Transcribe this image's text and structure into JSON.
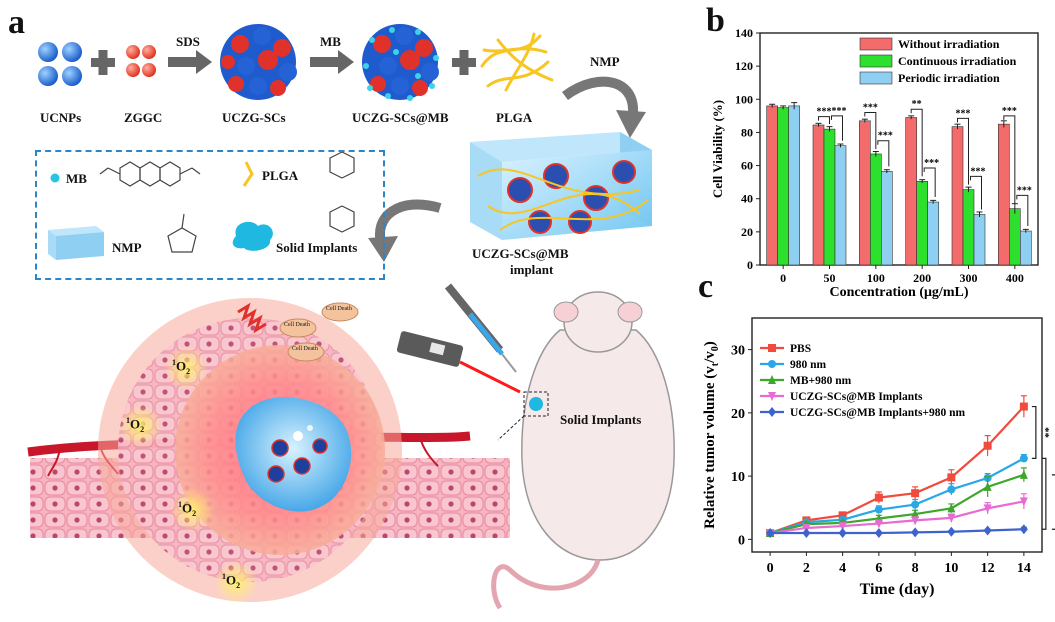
{
  "panel_a": {
    "letter": "a",
    "steps": {
      "ucnps": "UCNPs",
      "zggc": "ZGGC",
      "sds": "SDS",
      "ucsz": "UCZG-SCs",
      "mb_arrow": "MB",
      "ucsz_mb": "UCZG-SCs@MB",
      "plga": "PLGA",
      "nmp": "NMP"
    },
    "legend": {
      "mb": "MB",
      "plga": "PLGA",
      "nmp": "NMP",
      "solid_implants": "Solid Implants"
    },
    "implant_label_1": "UCZG-SCs@MB",
    "implant_label_2": "implant",
    "solid_implants_label": "Solid Implants",
    "cell_death": "Cell Death",
    "singlet_oxygen_sup": "1",
    "singlet_oxygen": "O",
    "singlet_oxygen_sub": "2"
  },
  "colors": {
    "red": "#f36b6b",
    "green": "#2ee02e",
    "blue": "#8fd0f2",
    "pbs": "#f04b3c",
    "nm980": "#29a7e6",
    "mb980": "#3da62b",
    "implants": "#e86bd3",
    "implants980": "#3f62cc"
  },
  "chart_data": [
    {
      "panel": "b",
      "type": "bar",
      "xlabel": "Concentration (μg/mL)",
      "ylabel": "Cell Viability (%)",
      "ylim": [
        0,
        140
      ],
      "yticks": [
        "0",
        "20",
        "40",
        "60",
        "80",
        "100",
        "120",
        "140"
      ],
      "categories": [
        "0",
        "50",
        "100",
        "200",
        "300",
        "400"
      ],
      "series": [
        {
          "name": "Without irradiation",
          "values": [
            96,
            84.5,
            87,
            89,
            83.5,
            85
          ],
          "errors": [
            1,
            1,
            1,
            1,
            1.5,
            2
          ]
        },
        {
          "name": "Continuous irradiation",
          "values": [
            95,
            82,
            67,
            50.5,
            45.5,
            34
          ],
          "errors": [
            1,
            1.5,
            1.5,
            1,
            1.5,
            3
          ]
        },
        {
          "name": "Periodic irradiation",
          "values": [
            96,
            72,
            56.5,
            38,
            30.5,
            20.5
          ],
          "errors": [
            2,
            1,
            1,
            1,
            1.5,
            1
          ]
        }
      ],
      "significance": [
        "***",
        "***",
        "***",
        "***",
        "**",
        "***",
        "***",
        "***",
        "***",
        "***"
      ],
      "legend_position": "top-right"
    },
    {
      "panel": "c",
      "type": "line",
      "xlabel": "Time (day)",
      "ylabel": "Relative tumor volume (v",
      "ylabel_sub1": "t",
      "ylabel_mid": "/v",
      "ylabel_sub2": "0",
      "ylabel_end": ")",
      "x": [
        0,
        2,
        4,
        6,
        8,
        10,
        12,
        14
      ],
      "xticks": [
        "0",
        "2",
        "4",
        "6",
        "8",
        "10",
        "12",
        "14"
      ],
      "ylim": [
        -2,
        35
      ],
      "yticks": [
        "0",
        "10",
        "20",
        "30"
      ],
      "series": [
        {
          "name": "PBS",
          "values": [
            1,
            3,
            3.8,
            6.6,
            7.3,
            9.8,
            14.8,
            21
          ],
          "errors": [
            0.2,
            0.3,
            0.4,
            0.9,
            1.0,
            1.2,
            1.6,
            1.7
          ]
        },
        {
          "name": "980 nm",
          "values": [
            1,
            2.7,
            3.1,
            4.7,
            5.5,
            7.9,
            9.7,
            12.8
          ],
          "errors": [
            0.2,
            0.3,
            0.4,
            0.6,
            0.8,
            0.9,
            0.7,
            0.6
          ]
        },
        {
          "name": "MB+980 nm",
          "values": [
            1,
            2.4,
            2.6,
            3.3,
            4.0,
            4.9,
            8.3,
            10.2
          ],
          "errors": [
            0.2,
            0.3,
            0.3,
            0.5,
            0.6,
            0.7,
            1.6,
            1.1
          ]
        },
        {
          "name": "UCZG-SCs@MB  Implants",
          "values": [
            1,
            1.8,
            2.1,
            2.5,
            3.0,
            3.4,
            4.9,
            6.0
          ],
          "errors": [
            0.2,
            0.2,
            0.3,
            0.4,
            0.5,
            0.6,
            0.9,
            1.2
          ]
        },
        {
          "name": "UCZG-SCs@MB  Implants+980 nm",
          "values": [
            1,
            1.0,
            1.0,
            1.0,
            1.1,
            1.2,
            1.4,
            1.6
          ],
          "errors": [
            0.1,
            0.1,
            0.1,
            0.1,
            0.1,
            0.2,
            0.2,
            0.3
          ]
        }
      ],
      "significance": [
        "**",
        "***",
        "***"
      ],
      "legend_position": "top-left"
    }
  ]
}
